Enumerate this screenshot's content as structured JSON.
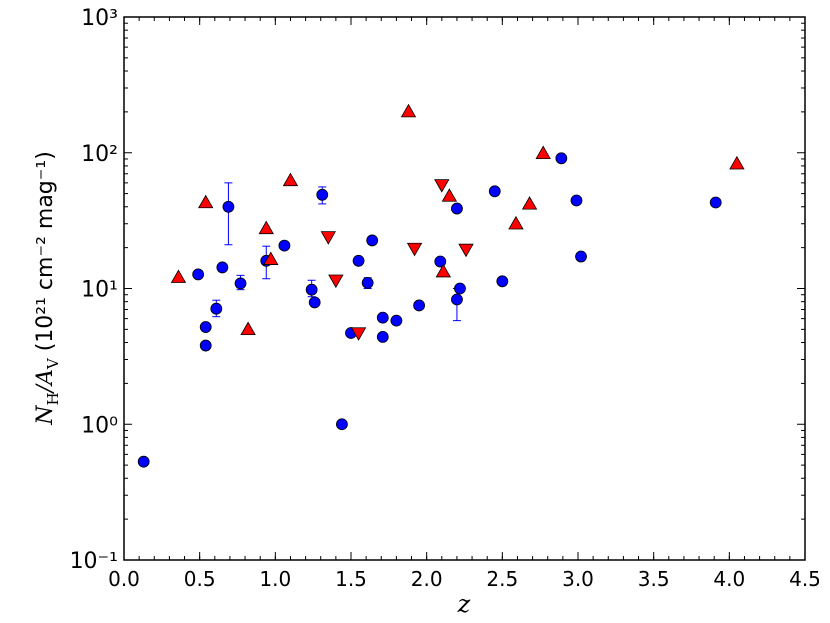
{
  "chart_data": {
    "type": "scatter",
    "x_label": "z",
    "y_label": [
      "N",
      "H",
      "/A",
      "V",
      "  (10²¹ cm⁻² mag⁻¹)"
    ],
    "xlim": [
      0,
      4.5
    ],
    "xticks": [
      {
        "value": 0,
        "label": "0.0"
      },
      0.5,
      {
        "value": 1,
        "label": "1.0"
      },
      1.5,
      {
        "value": 2,
        "label": "2.0"
      },
      2.5,
      {
        "value": 3,
        "label": "3.0"
      },
      3.5,
      {
        "value": 4,
        "label": "4.0"
      },
      4.5
    ],
    "ylim": [
      0.1,
      1000
    ],
    "yticks": [
      {
        "value": 0.1,
        "label": "10⁻¹"
      },
      {
        "value": 1,
        "label": "10⁰"
      },
      {
        "value": 10,
        "label": "10¹"
      },
      {
        "value": 100,
        "label": "10²"
      },
      {
        "value": 1000,
        "label": "10³"
      }
    ],
    "log_y": true,
    "minor_ticks": true,
    "grid": false,
    "series": [
      {
        "marker": "circle",
        "color": "#0000ff",
        "x": [
          0.13,
          0.49,
          0.54,
          0.54,
          0.61,
          0.65,
          0.69,
          0.77,
          0.94,
          1.06,
          1.24,
          1.26,
          1.31,
          1.44,
          1.5,
          1.55,
          1.61,
          1.64,
          1.71,
          1.71,
          1.8,
          1.95,
          2.09,
          2.2,
          2.2,
          2.22,
          2.45,
          2.5,
          2.89,
          2.99,
          3.02,
          3.91
        ],
        "values": [
          0.53,
          12.7,
          5.2,
          3.8,
          7.1,
          14.3,
          40,
          10.9,
          16,
          20.7,
          9.8,
          7.9,
          49,
          1.0,
          4.7,
          16,
          11,
          22.6,
          6.1,
          4.4,
          5.8,
          7.5,
          15.8,
          38.8,
          8.3,
          10,
          52,
          11.3,
          91,
          44.5,
          17.2,
          43
        ],
        "yerr_low": [
          null,
          null,
          null,
          null,
          0.9,
          null,
          19,
          1.1,
          4.2,
          null,
          1.1,
          null,
          7,
          null,
          null,
          null,
          1,
          null,
          null,
          null,
          null,
          null,
          null,
          null,
          2.5,
          null,
          null,
          null,
          null,
          null,
          null,
          null
        ],
        "yerr_high": [
          null,
          null,
          null,
          null,
          1.1,
          null,
          20,
          1.6,
          4.5,
          null,
          1.7,
          null,
          7,
          null,
          null,
          null,
          1,
          null,
          null,
          null,
          null,
          null,
          null,
          null,
          1.7,
          null,
          null,
          null,
          null,
          null,
          null,
          null
        ]
      },
      {
        "marker": "triangle-up",
        "color": "#ff0000",
        "x": [
          0.36,
          0.54,
          0.82,
          0.94,
          0.97,
          1.1,
          1.88,
          2.11,
          2.15,
          2.59,
          2.68,
          2.77,
          4.05
        ],
        "values": [
          12.1,
          43,
          5.0,
          27.7,
          16.4,
          62.5,
          201,
          13.3,
          48,
          30,
          42,
          99,
          83
        ]
      },
      {
        "marker": "triangle-down",
        "color": "#ff0000",
        "x": [
          1.35,
          1.4,
          1.55,
          1.92,
          2.1,
          2.26
        ],
        "values": [
          24,
          11.5,
          4.7,
          19.7,
          58,
          19.4
        ]
      }
    ]
  }
}
